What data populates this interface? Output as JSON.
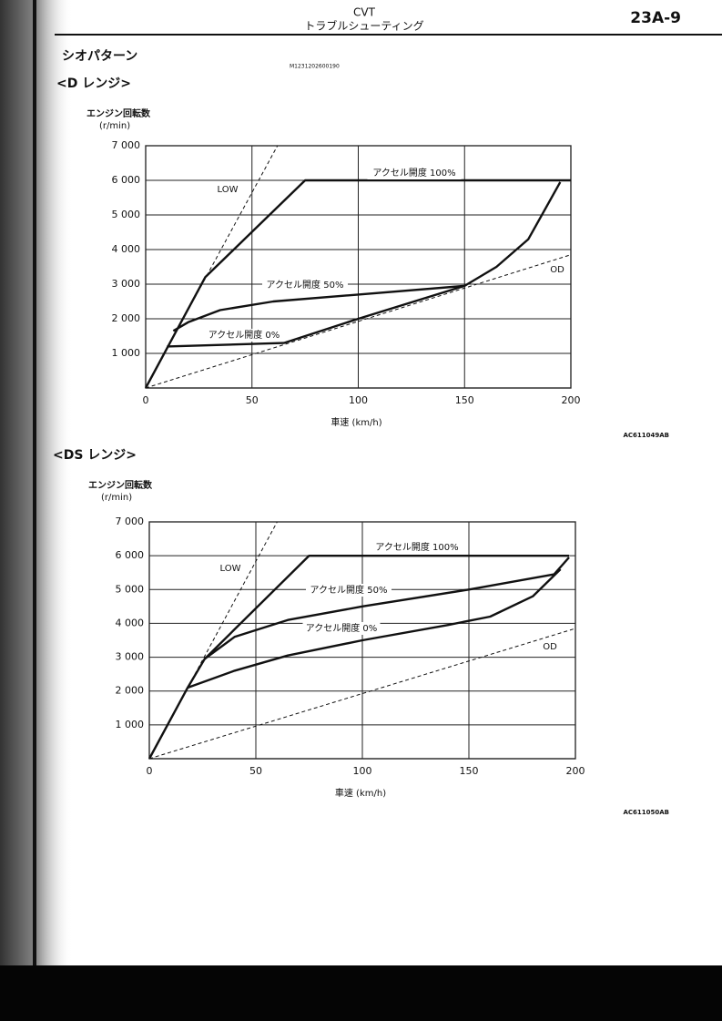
{
  "header": {
    "title": "CVT",
    "subtitle": "トラブルシューティング",
    "page": "23A-9"
  },
  "section": "シオパターン",
  "doc_code": "M1231202600190",
  "chart_data": [
    {
      "type": "line",
      "title": "<D レンジ>",
      "ylabel": "エンジン回転数",
      "yunit": "(r/min)",
      "xlabel": "車速 (km/h)",
      "figure_id": "AC611049AB",
      "xlim": [
        0,
        200
      ],
      "ylim": [
        0,
        7000
      ],
      "xticks": [
        0,
        50,
        100,
        150,
        200
      ],
      "yticks": [
        {
          "value": 1000,
          "label": "1 000"
        },
        {
          "value": 2000,
          "label": "2 000"
        },
        {
          "value": 3000,
          "label": "3 000"
        },
        {
          "value": 4000,
          "label": "4 000"
        },
        {
          "value": 5000,
          "label": "5 000"
        },
        {
          "value": 6000,
          "label": "6 000"
        },
        {
          "value": 7000,
          "label": "7 000"
        }
      ],
      "grid": true,
      "series": [
        {
          "name": "LOW",
          "color": "#111111",
          "style": "dashed",
          "x": [
            0,
            62
          ],
          "values": [
            0,
            7000
          ]
        },
        {
          "name": "OD",
          "color": "#111111",
          "style": "dashed",
          "x": [
            0,
            200
          ],
          "values": [
            0,
            3850
          ]
        },
        {
          "name": "アクセル開度 100%",
          "color": "#111111",
          "style": "solid",
          "x": [
            0,
            28,
            75,
            200
          ],
          "values": [
            0,
            3200,
            6000,
            6000
          ]
        },
        {
          "name": "アクセル開度 50%",
          "color": "#111111",
          "style": "solid",
          "x": [
            13,
            20,
            35,
            60,
            100,
            150,
            165,
            180,
            195
          ],
          "values": [
            1650,
            1900,
            2250,
            2500,
            2700,
            2950,
            3500,
            4300,
            5950
          ]
        },
        {
          "name": "アクセル開度 0%",
          "color": "#111111",
          "style": "solid",
          "x": [
            10,
            65,
            100,
            150
          ],
          "values": [
            1200,
            1300,
            2000,
            2950
          ]
        }
      ]
    },
    {
      "type": "line",
      "title": "<DS レンジ>",
      "ylabel": "エンジン回転数",
      "yunit": "(r/min)",
      "xlabel": "車速 (km/h)",
      "figure_id": "AC611050AB",
      "xlim": [
        0,
        200
      ],
      "ylim": [
        0,
        7000
      ],
      "xticks": [
        0,
        50,
        100,
        150,
        200
      ],
      "yticks": [
        {
          "value": 1000,
          "label": "1 000"
        },
        {
          "value": 2000,
          "label": "2 000"
        },
        {
          "value": 3000,
          "label": "3 000"
        },
        {
          "value": 4000,
          "label": "4 000"
        },
        {
          "value": 5000,
          "label": "5 000"
        },
        {
          "value": 6000,
          "label": "6 000"
        },
        {
          "value": 7000,
          "label": "7 000"
        }
      ],
      "grid": true,
      "series": [
        {
          "name": "LOW",
          "color": "#111111",
          "style": "dashed",
          "x": [
            0,
            60
          ],
          "values": [
            0,
            7000
          ]
        },
        {
          "name": "OD",
          "color": "#111111",
          "style": "dashed",
          "x": [
            0,
            200
          ],
          "values": [
            0,
            3850
          ]
        },
        {
          "name": "アクセル開度 100%",
          "color": "#111111",
          "style": "solid",
          "x": [
            0,
            18,
            26,
            75,
            197
          ],
          "values": [
            0,
            2100,
            2950,
            6000,
            6000
          ]
        },
        {
          "name": "アクセル開度 50%",
          "color": "#111111",
          "style": "solid",
          "x": [
            26,
            40,
            65,
            100,
            150,
            190,
            197
          ],
          "values": [
            2950,
            3600,
            4100,
            4500,
            5000,
            5450,
            5950
          ]
        },
        {
          "name": "アクセル開度 0%",
          "color": "#111111",
          "style": "solid",
          "x": [
            18,
            40,
            65,
            100,
            140,
            160,
            180,
            193
          ],
          "values": [
            2100,
            2600,
            3050,
            3500,
            3950,
            4200,
            4800,
            5600
          ]
        }
      ]
    }
  ]
}
